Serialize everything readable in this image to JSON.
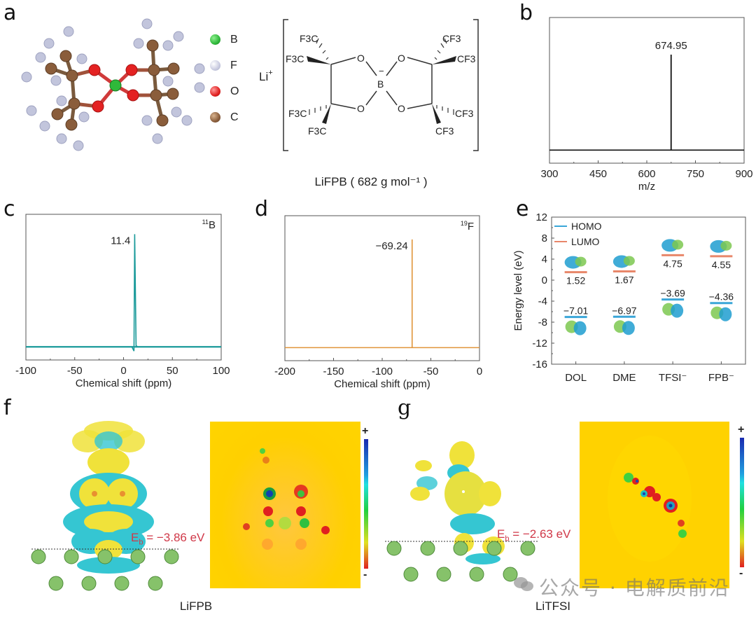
{
  "figure": {
    "panels": {
      "a": {
        "label": "a",
        "legend": [
          {
            "element": "B",
            "color": "#2fb83a"
          },
          {
            "element": "F",
            "color": "#c9cbe0"
          },
          {
            "element": "O",
            "color": "#e02020"
          },
          {
            "element": "C",
            "color": "#8a5d3b"
          }
        ],
        "structure": {
          "cation": "Li",
          "cation_charge": "+",
          "center_atom": "B",
          "center_charge": "−",
          "oxygen": "O",
          "groups_left": [
            "F3C",
            "F3C",
            "F3C",
            "F3C"
          ],
          "groups_right": [
            "CF3",
            "CF3",
            "CF3",
            "CF3"
          ]
        },
        "caption": "LiFPB ( 682 g mol⁻¹ )"
      },
      "b": {
        "label": "b"
      },
      "c": {
        "label": "c"
      },
      "d": {
        "label": "d"
      },
      "e": {
        "label": "e"
      },
      "f": {
        "label": "f",
        "binding_energy": "E_b = −3.86 eV",
        "eb_prefix": "E",
        "eb_sub": "b",
        "eb_value": " = −3.86 eV",
        "caption": "LiFPB",
        "colorbar_plus": "+",
        "colorbar_minus": "-"
      },
      "g": {
        "label": "g",
        "binding_energy": "E_b = −2.63 eV",
        "eb_prefix": "E",
        "eb_sub": "b",
        "eb_value": " = −2.63 eV",
        "caption": "LiTFSI",
        "colorbar_plus": "+",
        "colorbar_minus": "-"
      }
    },
    "watermark": "公众号 · 电解质前沿"
  },
  "chart_data": [
    {
      "id": "b",
      "type": "line",
      "title": "",
      "xlabel": "m/z",
      "ylabel": "",
      "xlim": [
        300,
        900
      ],
      "xticks": [
        300,
        450,
        600,
        750,
        900
      ],
      "peaks": [
        {
          "x": 674.95,
          "relative_intensity": 0.72,
          "label": "674.95"
        }
      ],
      "color": "#111111"
    },
    {
      "id": "c",
      "type": "line",
      "title": "",
      "nucleus_prefix": "11",
      "nucleus": "B",
      "xlabel": "Chemical shift (ppm)",
      "ylabel": "",
      "xlim": [
        -100,
        100
      ],
      "xticks": [
        -100,
        -50,
        0,
        50,
        100
      ],
      "peaks": [
        {
          "x": 11.4,
          "relative_intensity": 0.85,
          "label": "11.4"
        }
      ],
      "color": "#1a9a9a"
    },
    {
      "id": "d",
      "type": "line",
      "title": "",
      "nucleus_prefix": "19",
      "nucleus": "F",
      "xlabel": "Chemical shift (ppm)",
      "ylabel": "",
      "xlim": [
        -200,
        0
      ],
      "xticks": [
        -200,
        -150,
        -100,
        -50,
        0
      ],
      "peaks": [
        {
          "x": -69.24,
          "relative_intensity": 0.82,
          "label": "−69.24"
        }
      ],
      "color": "#e0953a"
    },
    {
      "id": "e",
      "type": "scatter",
      "title": "",
      "xlabel": "",
      "ylabel": "Energy level (eV)",
      "ylim": [
        -16,
        12
      ],
      "yticks": [
        12,
        8,
        4,
        0,
        -4,
        -8,
        -12,
        -16
      ],
      "categories": [
        "DOL",
        "DME",
        "TFSI⁻",
        "FPB⁻"
      ],
      "legend": [
        {
          "name": "HOMO",
          "color": "#3aa6d8"
        },
        {
          "name": "LUMO",
          "color": "#e8876a"
        }
      ],
      "legend_position": "top-left",
      "series": [
        {
          "name": "HOMO",
          "values": [
            -7.01,
            -6.97,
            -3.69,
            -4.36
          ],
          "labels": [
            "−7.01",
            "−6.97",
            "−3.69",
            "−4.36"
          ]
        },
        {
          "name": "LUMO",
          "values": [
            1.52,
            1.67,
            4.75,
            4.55
          ],
          "labels": [
            "1.52",
            "1.67",
            "4.75",
            "4.55"
          ]
        }
      ]
    }
  ]
}
